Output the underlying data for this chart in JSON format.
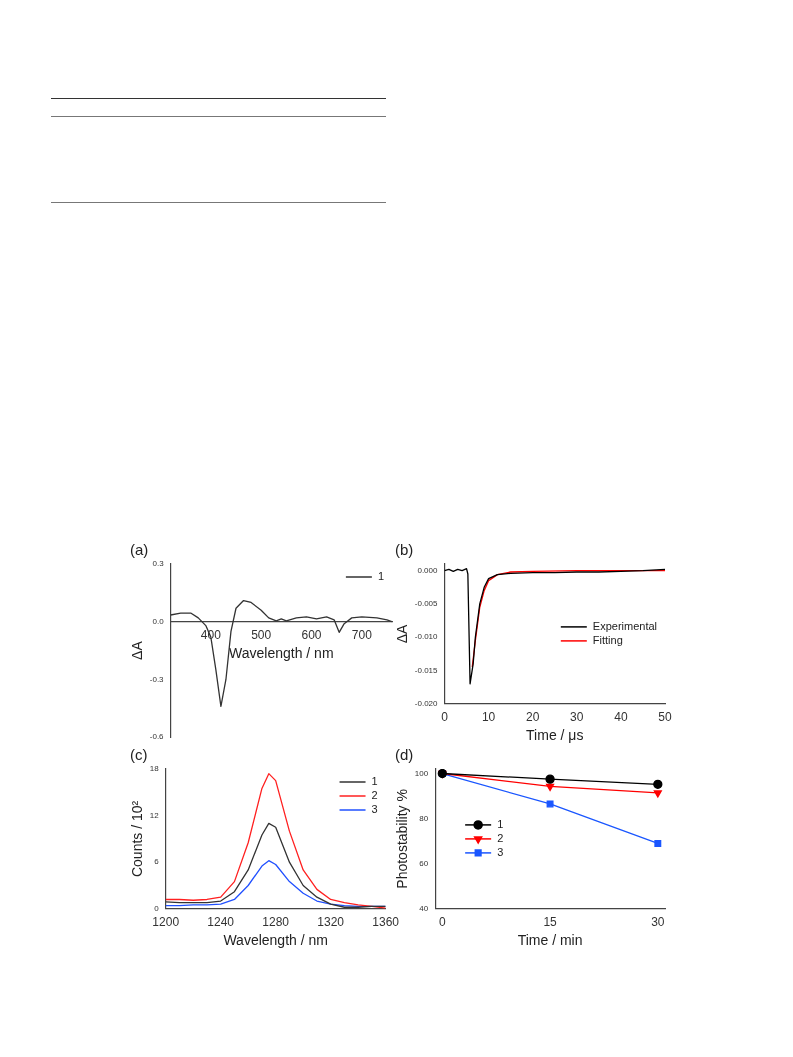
{
  "chart_data": [
    {
      "type": "line",
      "title": "(a)",
      "xlabel": "Wavelength / nm",
      "ylabel": "ΔA",
      "xlim": [
        320,
        760
      ],
      "xticks": [
        400,
        500,
        600,
        700
      ],
      "ylim": [
        -0.6,
        0.3
      ],
      "yticks": [
        {
          "value": 0.3,
          "label": "0.3"
        },
        {
          "value": 0,
          "label": "0.0"
        },
        {
          "value": -0.3,
          "label": "-0.3"
        },
        {
          "value": -0.6,
          "label": "-0.6"
        }
      ],
      "grid": false,
      "legend": "top right",
      "series": [
        {
          "name": "1",
          "color": "#333333",
          "x": [
            320,
            340,
            360,
            375,
            390,
            400,
            410,
            420,
            430,
            440,
            450,
            465,
            480,
            500,
            515,
            530,
            540,
            550,
            570,
            590,
            610,
            630,
            645,
            655,
            665,
            680,
            700,
            730,
            750,
            760
          ],
          "values": [
            0.035,
            0.045,
            0.045,
            0.02,
            -0.02,
            -0.08,
            -0.25,
            -0.44,
            -0.3,
            -0.05,
            0.07,
            0.11,
            0.1,
            0.06,
            0.02,
            0.005,
            0.015,
            0.005,
            0.02,
            0.025,
            0.015,
            0.025,
            0.01,
            -0.055,
            -0.01,
            0.02,
            0.025,
            0.02,
            0.01,
            0
          ]
        }
      ]
    },
    {
      "type": "line",
      "title": "(b)",
      "xlabel": "Time / μs",
      "ylabel": "ΔA",
      "xlim": [
        0,
        50
      ],
      "xticks": [
        0,
        10,
        20,
        30,
        40,
        50
      ],
      "ylim": [
        -0.02,
        0.001
      ],
      "yticks": [
        {
          "value": 0,
          "label": "0.000"
        },
        {
          "value": -0.005,
          "label": "-0.005"
        },
        {
          "value": -0.01,
          "label": "-0.010"
        },
        {
          "value": -0.015,
          "label": "-0.015"
        },
        {
          "value": -0.02,
          "label": "-0.020"
        }
      ],
      "grid": false,
      "legend": "right",
      "series": [
        {
          "name": "Experimental",
          "color": "#000000",
          "x": [
            0,
            1,
            2,
            3,
            4,
            5,
            5.3,
            5.8,
            6.5,
            7,
            8,
            9,
            10,
            12,
            15,
            20,
            25,
            30,
            35,
            40,
            45,
            50
          ],
          "values": [
            0,
            0.0002,
            -0.0001,
            0.0002,
            0,
            0.0003,
            -0.0005,
            -0.017,
            -0.014,
            -0.01,
            -0.005,
            -0.0025,
            -0.0012,
            -0.0006,
            -0.0004,
            -0.0003,
            -0.0003,
            -0.0002,
            -0.0002,
            -0.0001,
            0,
            0.0002
          ]
        },
        {
          "name": "Fitting",
          "color": "#ff0000",
          "x": [
            6.3,
            7,
            8,
            9,
            10,
            12,
            15,
            20,
            30,
            50
          ],
          "values": [
            -0.0145,
            -0.0105,
            -0.0055,
            -0.003,
            -0.0015,
            -0.0006,
            -0.0002,
            -0.0001,
            0,
            0
          ]
        }
      ]
    },
    {
      "type": "line",
      "title": "(c)",
      "xlabel": "Wavelength / nm",
      "ylabel": "Counts / 10²",
      "xlim": [
        1200,
        1360
      ],
      "xticks": [
        1200,
        1240,
        1280,
        1320,
        1360
      ],
      "ylim": [
        0,
        18
      ],
      "yticks": [
        0,
        6,
        12,
        18
      ],
      "grid": false,
      "legend": "top right",
      "x": [
        1200,
        1210,
        1220,
        1230,
        1240,
        1250,
        1260,
        1270,
        1275,
        1280,
        1290,
        1300,
        1310,
        1320,
        1330,
        1340,
        1350,
        1360
      ],
      "series": [
        {
          "name": "1",
          "color": "#333333",
          "values": [
            0.9,
            0.8,
            0.8,
            0.8,
            1.0,
            2.2,
            5,
            9.5,
            11,
            10.5,
            6,
            3,
            1.5,
            0.6,
            0.2,
            0.2,
            0.3,
            0.3
          ]
        },
        {
          "name": "2",
          "color": "#ff2020",
          "values": [
            1.2,
            1.2,
            1.1,
            1.2,
            1.5,
            3.5,
            8.5,
            15.5,
            17.4,
            16.5,
            10,
            5,
            2.5,
            1.2,
            0.8,
            0.5,
            0.3,
            0.1
          ]
        },
        {
          "name": "3",
          "color": "#2050ff",
          "values": [
            0.4,
            0.4,
            0.5,
            0.5,
            0.6,
            1.2,
            3,
            5.5,
            6.2,
            5.7,
            3.5,
            2,
            1,
            0.6,
            0.4,
            0.3,
            0.3,
            0.3
          ]
        }
      ]
    },
    {
      "type": "line",
      "title": "(d)",
      "xlabel": "Time / min",
      "ylabel": "Photostability %",
      "xlim": [
        -1,
        31
      ],
      "xticks": [
        0,
        15,
        30
      ],
      "ylim": [
        40,
        102
      ],
      "yticks": [
        40,
        60,
        80,
        100
      ],
      "grid": false,
      "legend": "left",
      "x": [
        0,
        15,
        30
      ],
      "series": [
        {
          "name": "1",
          "color": "#000000",
          "marker": "circle",
          "values": [
            100,
            97.5,
            95.2
          ]
        },
        {
          "name": "2",
          "color": "#ff0000",
          "marker": "triangle",
          "values": [
            100,
            94.3,
            91.4
          ]
        },
        {
          "name": "3",
          "color": "#1a56ff",
          "marker": "square",
          "values": [
            100,
            86.5,
            69
          ]
        }
      ]
    }
  ]
}
